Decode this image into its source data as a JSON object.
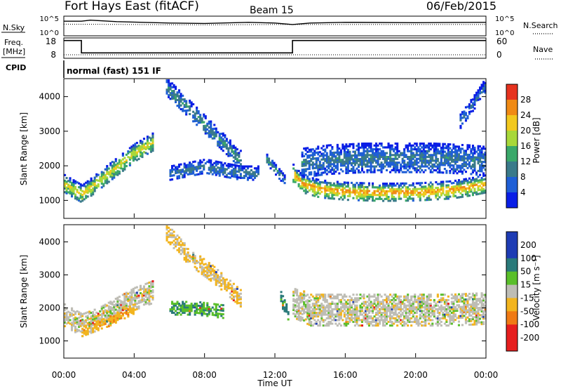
{
  "header": {
    "station": "Fort Hays East (fitACF)",
    "beam": "Beam 15",
    "date": "06/Feb/2015"
  },
  "top_panels": {
    "nsky_label": "N.Sky",
    "nsky_ticks": [
      "10^5",
      "10^0"
    ],
    "nsearch_label": "N.Search",
    "nsearch_ticks": [
      "10^5",
      "10^0"
    ],
    "freq_label": "Freq.",
    "freq_unit": "[MHz]",
    "freq_ticks": [
      "18",
      "8"
    ],
    "nave_label": "Nave",
    "nave_ticks": [
      "60",
      "0"
    ],
    "cpid_label": "CPID",
    "cpid_value": "normal (fast) 151 IF"
  },
  "x_axis": {
    "label": "Time UT",
    "ticks": [
      "00:00",
      "04:00",
      "08:00",
      "12:00",
      "16:00",
      "20:00",
      "00:00"
    ]
  },
  "power_panel": {
    "ylabel": "Slant Range [km]",
    "yticks": [
      "4000",
      "3000",
      "2000",
      "1000"
    ],
    "colorbar_label": "Power [dB]",
    "colorbar_ticks": [
      "28",
      "24",
      "20",
      "16",
      "12",
      "8",
      "4"
    ]
  },
  "velocity_panel": {
    "ylabel": "Slant Range [km]",
    "yticks": [
      "4000",
      "3000",
      "2000",
      "1000"
    ],
    "colorbar_label": "Velocity [m s⁻¹]",
    "colorbar_ticks": [
      "200",
      "100",
      "50",
      "15",
      "-15",
      "-50",
      "-100",
      "-200"
    ]
  },
  "chart_data": [
    {
      "type": "line",
      "x_range_hours": [
        0,
        24
      ],
      "series": [
        {
          "name": "N.Sky",
          "x": [
            0,
            1,
            1.5,
            3,
            6,
            8,
            10.5,
            12,
            13,
            14,
            16,
            20,
            24
          ],
          "values": [
            3.8,
            3.8,
            4.1,
            3.7,
            3.3,
            3.2,
            3.5,
            3.3,
            2.9,
            3.3,
            3.5,
            3.4,
            3.5
          ]
        },
        {
          "name": "N.Search",
          "x": [
            0,
            4,
            8,
            12,
            16,
            20,
            24
          ],
          "values": [
            3.0,
            2.9,
            2.8,
            2.9,
            2.9,
            2.9,
            2.9
          ]
        }
      ]
    },
    {
      "type": "line",
      "x_range_hours": [
        0,
        24
      ],
      "ylim": [
        8,
        18
      ],
      "series": [
        {
          "name": "Freq.",
          "x": [
            0,
            1.0,
            1.0,
            13.0,
            13.0,
            24
          ],
          "values": [
            17,
            17,
            10.5,
            10.5,
            17,
            17
          ]
        },
        {
          "name": "Nave",
          "x": [
            0,
            24
          ],
          "values": [
            9.5,
            9.5
          ]
        }
      ]
    },
    {
      "type": "heatmap",
      "variable": "Power [dB]",
      "x_range_hours": [
        0,
        24
      ],
      "ylim": [
        500,
        4500
      ],
      "zlim": [
        0,
        30
      ],
      "color_levels": [
        4,
        8,
        12,
        16,
        20,
        24,
        28
      ],
      "bands": [
        {
          "x": [
            0.0,
            1.0,
            2.0,
            3.0,
            4.0,
            5.0
          ],
          "center": [
            1500,
            1200,
            1600,
            2000,
            2400,
            2700
          ],
          "halfwidth": 260,
          "peak_db": 22
        },
        {
          "x": [
            5.8,
            7.0,
            8.0,
            9.0,
            10.0
          ],
          "center": [
            4300,
            3700,
            3200,
            2700,
            2200
          ],
          "halfwidth": 260,
          "peak_db": 12
        },
        {
          "x": [
            6.0,
            7.0,
            8.0,
            9.0,
            10.0,
            11.0
          ],
          "center": [
            1800,
            1900,
            2000,
            1900,
            1800,
            1800
          ],
          "halfwidth": 200,
          "peak_db": 10
        },
        {
          "x": [
            11.5,
            12.0,
            12.5
          ],
          "center": [
            2200,
            1900,
            1600
          ],
          "halfwidth": 150,
          "peak_db": 12
        },
        {
          "x": [
            13.0,
            13.5,
            14.5,
            16.0,
            18.0,
            20.0,
            22.0,
            23.0,
            24.0
          ],
          "center": [
            1800,
            1500,
            1350,
            1280,
            1250,
            1260,
            1320,
            1400,
            1500
          ],
          "halfwidth": 260,
          "peak_db": 26
        },
        {
          "x": [
            13.5,
            15.0,
            17.0,
            19.0,
            21.0,
            23.0,
            24.0
          ],
          "center": [
            2100,
            2200,
            2250,
            2250,
            2250,
            2200,
            2150
          ],
          "halfwidth": 430,
          "peak_db": 10
        },
        {
          "x": [
            22.5,
            23.5,
            24.0
          ],
          "center": [
            3300,
            4000,
            4400
          ],
          "halfwidth": 200,
          "peak_db": 8
        }
      ]
    },
    {
      "type": "heatmap",
      "variable": "Velocity [m s⁻¹]",
      "x_range_hours": [
        0,
        24
      ],
      "ylim": [
        500,
        4500
      ],
      "zlim": [
        -200,
        200
      ],
      "color_levels": [
        200,
        100,
        50,
        15,
        -15,
        -50,
        -100,
        -200
      ],
      "bands": [
        {
          "x": [
            0.0,
            1.0,
            2.0,
            3.0,
            4.0,
            5.0
          ],
          "center": [
            1800,
            1500,
            1700,
            2000,
            2300,
            2500
          ],
          "halfwidth": 350,
          "velocity": 0
        },
        {
          "x": [
            1.0,
            2.5,
            4.0
          ],
          "center": [
            1300,
            1600,
            2000
          ],
          "halfwidth": 150,
          "velocity": -40
        },
        {
          "x": [
            5.8,
            7.0,
            8.5,
            10.0
          ],
          "center": [
            4300,
            3600,
            3000,
            2300
          ],
          "halfwidth": 250,
          "velocity": -20
        },
        {
          "x": [
            6.0,
            7.5,
            9.0
          ],
          "center": [
            2000,
            2000,
            1900
          ],
          "halfwidth": 200,
          "velocity": 45
        },
        {
          "x": [
            12.3,
            12.7
          ],
          "center": [
            2300,
            1800
          ],
          "halfwidth": 200,
          "velocity": 60
        },
        {
          "x": [
            13.0,
            14.0,
            16.0,
            18.0,
            20.0,
            22.0,
            24.0
          ],
          "center": [
            2200,
            1950,
            1950,
            1950,
            1950,
            1950,
            2000
          ],
          "halfwidth": 480,
          "velocity": 0
        }
      ]
    }
  ]
}
